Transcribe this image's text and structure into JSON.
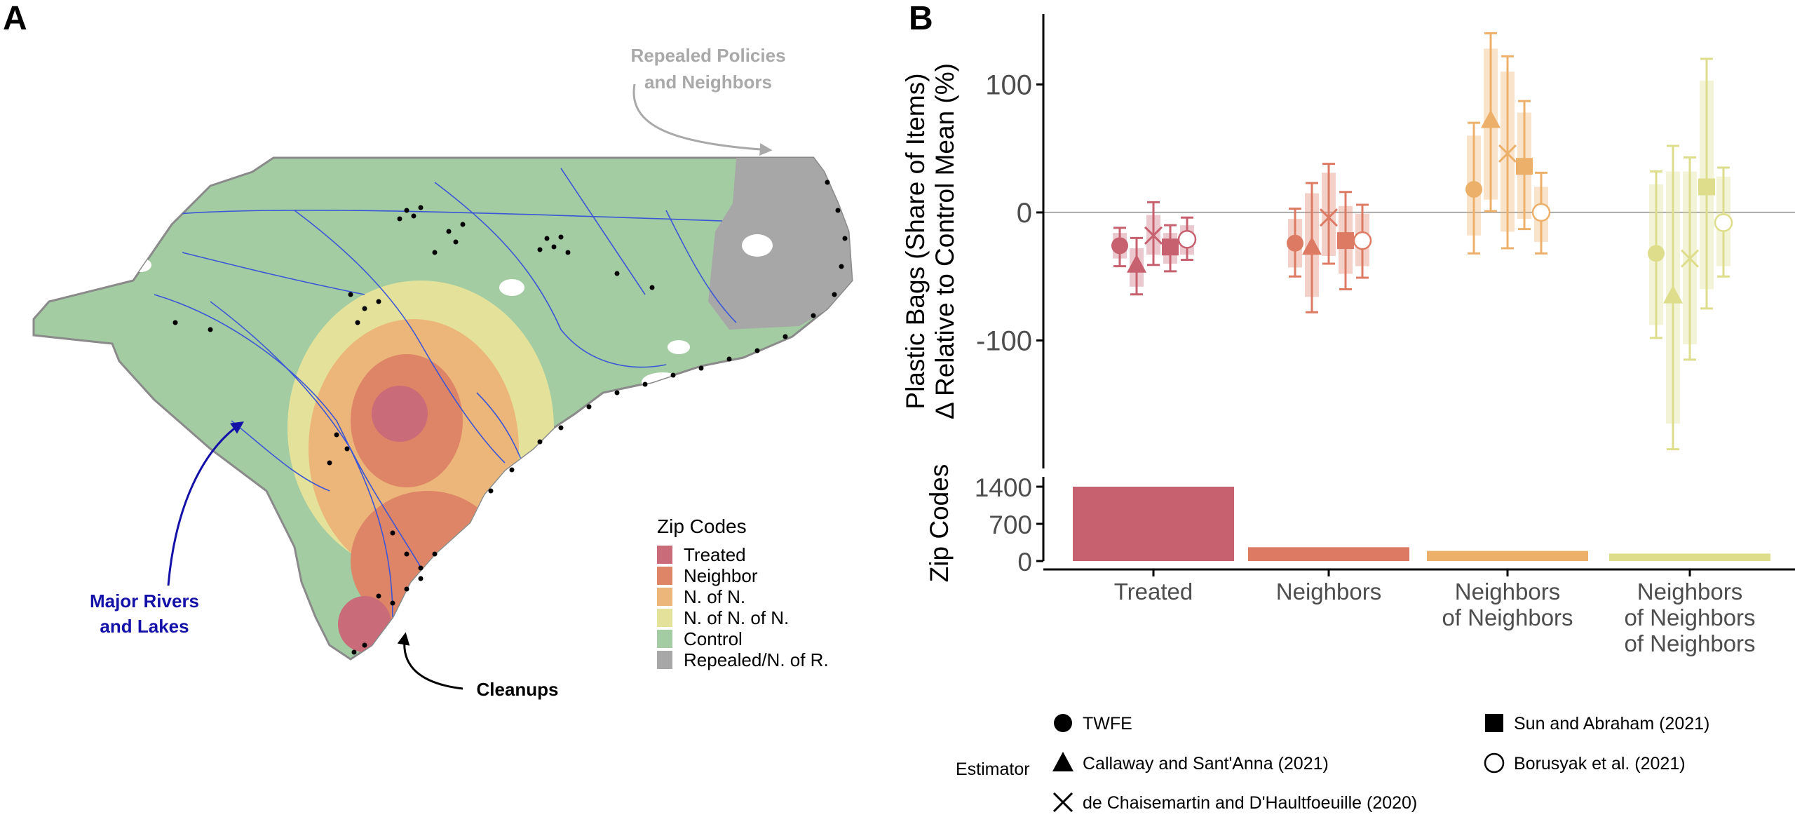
{
  "panel_a": {
    "label": "A",
    "annotations": {
      "repealed": [
        "Repealed Policies",
        "and Neighbors"
      ],
      "rivers": [
        "Major Rivers",
        "and Lakes"
      ],
      "cleanups": "Cleanups"
    },
    "legend": {
      "title": "Zip Codes",
      "items": [
        {
          "label": "Treated",
          "color": "#c96b79"
        },
        {
          "label": "Neighbor",
          "color": "#de8467"
        },
        {
          "label": "N. of N.",
          "color": "#ecb67a"
        },
        {
          "label": "N. of N. of N.",
          "color": "#e4e29a"
        },
        {
          "label": "Control",
          "color": "#a3cca3"
        },
        {
          "label": "Repealed/N. of R.",
          "color": "#a7a7a7"
        }
      ]
    },
    "colors": {
      "river": "#3b56d6",
      "river_label": "#1411a8",
      "repealed_label": "#a9a9a9",
      "dot": "#000000"
    }
  },
  "panel_b": {
    "label": "B",
    "estimator_title": "Estimator",
    "estimators": [
      {
        "name": "TWFE",
        "shape": "circle"
      },
      {
        "name": "Callaway and Sant'Anna (2021)",
        "shape": "triangle"
      },
      {
        "name": "de Chaisemartin and D'Haultfoeuille (2020)",
        "shape": "cross"
      },
      {
        "name": "Sun and Abraham (2021)",
        "shape": "square"
      },
      {
        "name": "Borusyak et al. (2021)",
        "shape": "open-circle"
      }
    ],
    "group_colors": [
      "#c7606f",
      "#dd7a63",
      "#edb06a",
      "#dedd8c"
    ]
  },
  "chart_data": [
    {
      "type": "scatter",
      "title": "",
      "ylabel": [
        "Plastic Bags (Share of Items)",
        "Δ Relative to Control Mean (%)"
      ],
      "xlabel": "",
      "ylim": [
        -200,
        155
      ],
      "yticks": [
        100,
        0,
        -100
      ],
      "ytick_labels": [
        "100",
        "0",
        "-100"
      ],
      "reference_line": 0,
      "categories": [
        "Treated",
        "Neighbors",
        "Neighbors of Neighbors",
        "Neighbors of Neighbors of Neighbors"
      ],
      "category_labels": [
        [
          "Treated"
        ],
        [
          "Neighbors"
        ],
        [
          "Neighbors",
          "of Neighbors"
        ],
        [
          "Neighbors",
          "of Neighbors",
          "of Neighbors"
        ]
      ],
      "series": [
        {
          "name": "TWFE",
          "points": [
            {
              "value": -26,
              "ci90": [
                -36,
                -16
              ],
              "ci95": [
                -42,
                -12
              ]
            },
            {
              "value": -24,
              "ci90": [
                -43,
                -5
              ],
              "ci95": [
                -50,
                3
              ]
            },
            {
              "value": 18,
              "ci90": [
                -18,
                60
              ],
              "ci95": [
                -32,
                70
              ]
            },
            {
              "value": -32,
              "ci90": [
                -88,
                22
              ],
              "ci95": [
                -98,
                32
              ]
            }
          ]
        },
        {
          "name": "Callaway and Sant'Anna (2021)",
          "points": [
            {
              "value": -41,
              "ci90": [
                -58,
                -28
              ],
              "ci95": [
                -64,
                -20
              ]
            },
            {
              "value": -27,
              "ci90": [
                -66,
                15
              ],
              "ci95": [
                -78,
                23
              ]
            },
            {
              "value": 72,
              "ci90": [
                10,
                128
              ],
              "ci95": [
                1,
                140
              ]
            },
            {
              "value": -65,
              "ci90": [
                -165,
                32
              ],
              "ci95": [
                -185,
                52
              ]
            }
          ]
        },
        {
          "name": "de Chaisemartin and D'Haultfoeuille (2020)",
          "points": [
            {
              "value": -18,
              "ci90": [
                -33,
                -2
              ],
              "ci95": [
                -41,
                8
              ]
            },
            {
              "value": -4,
              "ci90": [
                -34,
                31
              ],
              "ci95": [
                -40,
                38
              ]
            },
            {
              "value": 46,
              "ci90": [
                -15,
                110
              ],
              "ci95": [
                -28,
                122
              ]
            },
            {
              "value": -36,
              "ci90": [
                -103,
                32
              ],
              "ci95": [
                -115,
                43
              ]
            }
          ]
        },
        {
          "name": "Sun and Abraham (2021)",
          "points": [
            {
              "value": -27,
              "ci90": [
                -40,
                -16
              ],
              "ci95": [
                -46,
                -10
              ]
            },
            {
              "value": -22,
              "ci90": [
                -48,
                5
              ],
              "ci95": [
                -60,
                16
              ]
            },
            {
              "value": 36,
              "ci90": [
                -5,
                78
              ],
              "ci95": [
                -13,
                87
              ]
            },
            {
              "value": 20,
              "ci90": [
                -60,
                103
              ],
              "ci95": [
                -75,
                120
              ]
            }
          ]
        },
        {
          "name": "Borusyak et al. (2021)",
          "points": [
            {
              "value": -21,
              "ci90": [
                -33,
                -10
              ],
              "ci95": [
                -37,
                -4
              ]
            },
            {
              "value": -22,
              "ci90": [
                -42,
                -1
              ],
              "ci95": [
                -51,
                6
              ]
            },
            {
              "value": 0,
              "ci90": [
                -23,
                20
              ],
              "ci95": [
                -32,
                31
              ]
            },
            {
              "value": -8,
              "ci90": [
                -42,
                28
              ],
              "ci95": [
                -50,
                35
              ]
            }
          ]
        }
      ]
    },
    {
      "type": "bar",
      "ylabel": "Zip Codes",
      "ylim": [
        0,
        1400
      ],
      "yticks": [
        1400,
        700,
        0
      ],
      "ytick_labels": [
        "1400",
        "700",
        "0"
      ],
      "categories": [
        "Treated",
        "Neighbors",
        "Neighbors of Neighbors",
        "Neighbors of Neighbors of Neighbors"
      ],
      "values": [
        1400,
        260,
        190,
        140
      ]
    }
  ]
}
